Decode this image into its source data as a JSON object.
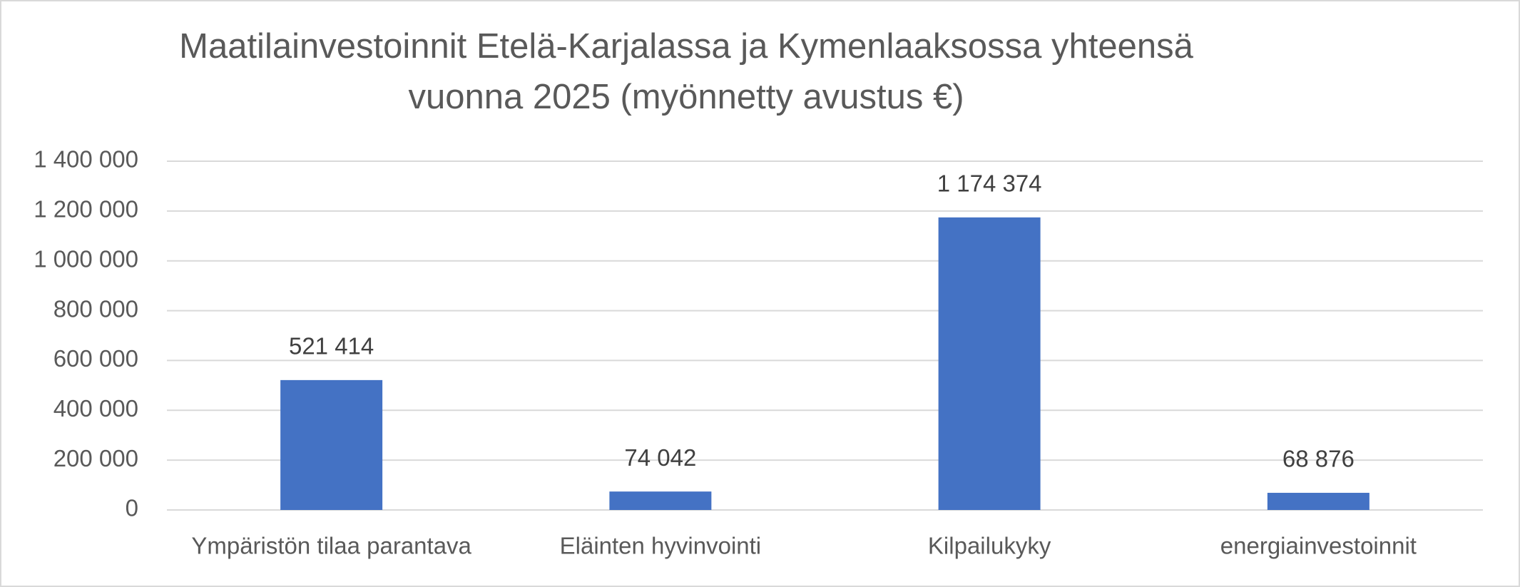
{
  "chart_data": {
    "type": "bar",
    "title": [
      "Maatilainvestoinnit Etelä-Karjalassa ja Kymenlaaksossa yhteensä",
      "vuonna 2025 (myönnetty avustus €)"
    ],
    "categories": [
      "Ympäristön tilaa parantava",
      "Eläinten hyvinvointi",
      "Kilpailukyky",
      "energiainvestoinnit"
    ],
    "values": [
      521414,
      74042,
      1174374,
      68876
    ],
    "value_labels": [
      "521 414",
      "74 042",
      "1 174 374",
      "68 876"
    ],
    "color": "#4472c4",
    "ylim": [
      0,
      1400000
    ],
    "yticks": [
      0,
      {
        "value": 200000,
        "label": "200 000"
      },
      {
        "value": 400000,
        "label": "400 000"
      },
      {
        "value": 600000,
        "label": "600 000"
      },
      {
        "value": 800000,
        "label": "800 000"
      },
      {
        "value": 1000000,
        "label": "1 000 000"
      },
      {
        "value": 1200000,
        "label": "1 200 000"
      },
      {
        "value": 1400000,
        "label": "1 400 000"
      }
    ],
    "grid": true
  }
}
